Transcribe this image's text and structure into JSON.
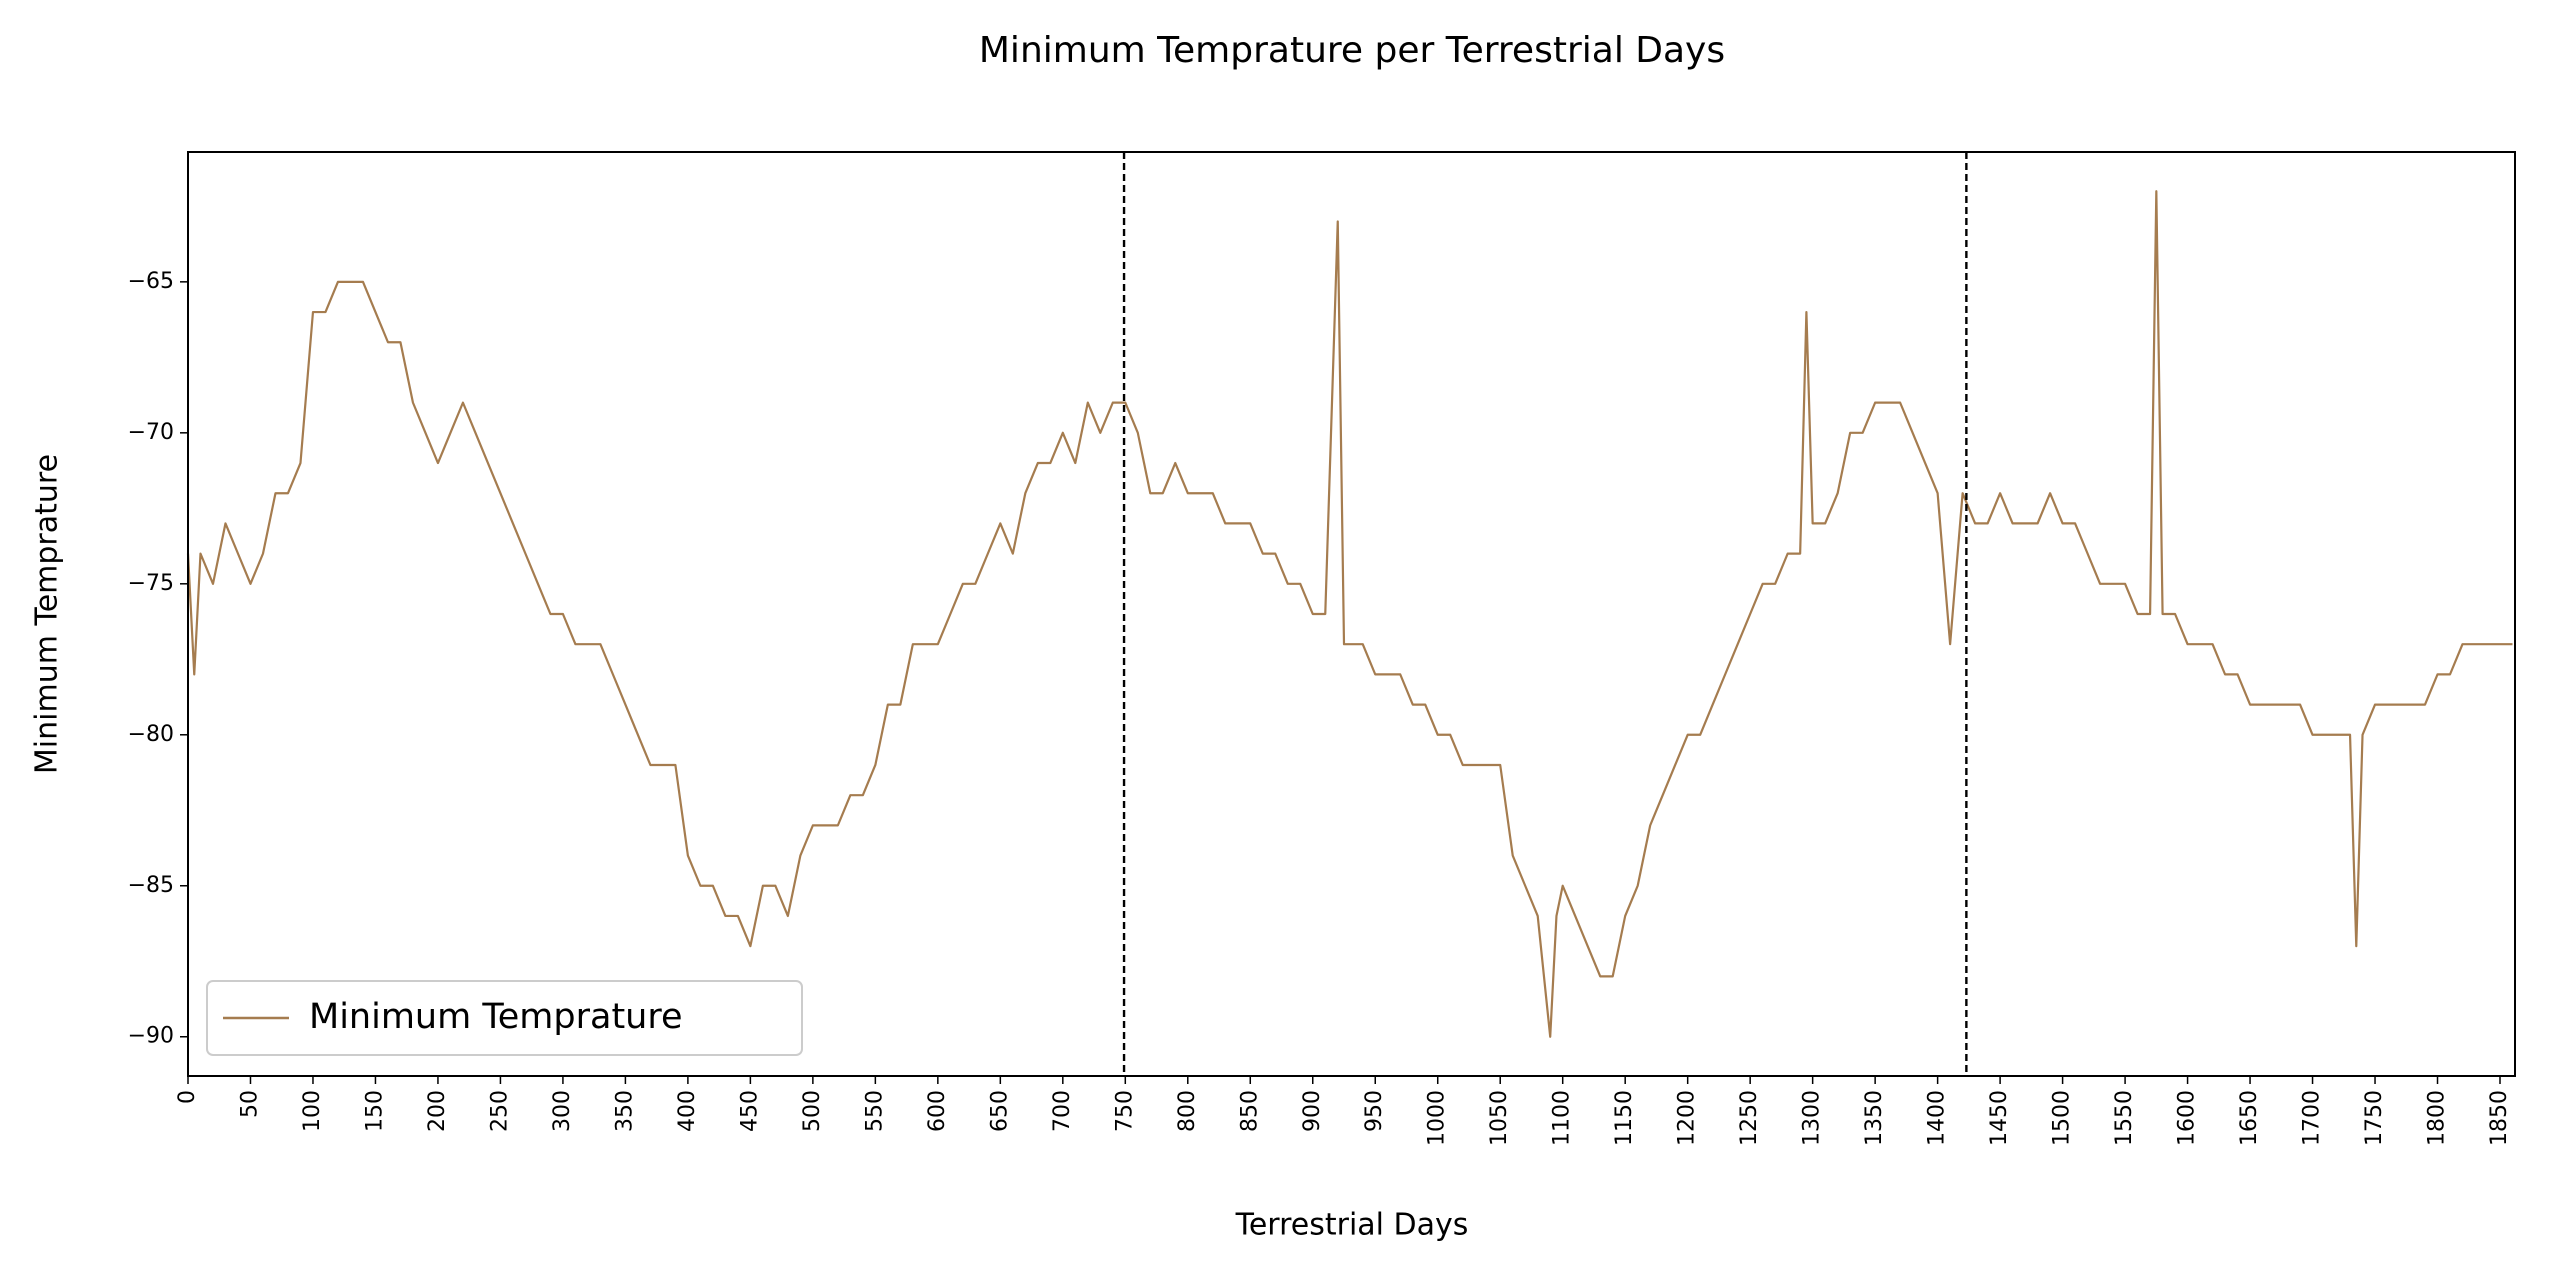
{
  "chart_data": {
    "type": "line",
    "title": "Minimum Temprature per Terrestrial Days",
    "xlabel": "Terrestrial Days",
    "ylabel": "Minimum Temprature",
    "x": [
      0,
      5,
      10,
      20,
      30,
      40,
      50,
      60,
      70,
      80,
      90,
      100,
      110,
      120,
      130,
      140,
      150,
      160,
      170,
      180,
      190,
      200,
      210,
      220,
      230,
      240,
      250,
      260,
      270,
      280,
      290,
      300,
      310,
      320,
      330,
      340,
      350,
      360,
      370,
      380,
      390,
      400,
      410,
      420,
      430,
      440,
      450,
      460,
      470,
      480,
      490,
      500,
      510,
      520,
      530,
      540,
      550,
      560,
      570,
      580,
      590,
      600,
      610,
      620,
      630,
      640,
      650,
      660,
      670,
      680,
      690,
      700,
      710,
      720,
      730,
      740,
      750,
      760,
      770,
      780,
      790,
      800,
      810,
      820,
      830,
      840,
      850,
      860,
      870,
      880,
      890,
      900,
      910,
      920,
      925,
      930,
      940,
      950,
      960,
      970,
      980,
      990,
      1000,
      1010,
      1020,
      1030,
      1040,
      1050,
      1060,
      1070,
      1080,
      1090,
      1095,
      1100,
      1110,
      1120,
      1130,
      1140,
      1150,
      1160,
      1170,
      1180,
      1190,
      1200,
      1210,
      1220,
      1230,
      1240,
      1250,
      1260,
      1270,
      1280,
      1290,
      1295,
      1300,
      1310,
      1320,
      1330,
      1340,
      1350,
      1360,
      1370,
      1380,
      1390,
      1400,
      1410,
      1420,
      1430,
      1440,
      1450,
      1460,
      1470,
      1480,
      1490,
      1500,
      1510,
      1520,
      1530,
      1540,
      1550,
      1560,
      1570,
      1575,
      1580,
      1590,
      1600,
      1610,
      1620,
      1630,
      1640,
      1650,
      1660,
      1670,
      1680,
      1690,
      1700,
      1710,
      1720,
      1730,
      1735,
      1740,
      1750,
      1760,
      1770,
      1780,
      1790,
      1800,
      1810,
      1820,
      1830,
      1840,
      1850,
      1860
    ],
    "series": [
      {
        "name": "Minimum Temprature",
        "color": "#a57c4f",
        "values": [
          -74,
          -78,
          -74,
          -75,
          -73,
          -74,
          -75,
          -74,
          -72,
          -72,
          -71,
          -66,
          -66,
          -65,
          -65,
          -65,
          -66,
          -67,
          -67,
          -69,
          -70,
          -71,
          -70,
          -69,
          -70,
          -71,
          -72,
          -73,
          -74,
          -75,
          -76,
          -76,
          -77,
          -77,
          -77,
          -78,
          -79,
          -80,
          -81,
          -81,
          -81,
          -84,
          -85,
          -85,
          -86,
          -86,
          -87,
          -85,
          -85,
          -86,
          -84,
          -83,
          -83,
          -83,
          -82,
          -82,
          -81,
          -79,
          -79,
          -77,
          -77,
          -77,
          -76,
          -75,
          -75,
          -74,
          -73,
          -74,
          -72,
          -71,
          -71,
          -70,
          -71,
          -69,
          -70,
          -69,
          -69,
          -70,
          -72,
          -72,
          -71,
          -72,
          -72,
          -72,
          -73,
          -73,
          -73,
          -74,
          -74,
          -75,
          -75,
          -76,
          -76,
          -63,
          -77,
          -77,
          -77,
          -78,
          -78,
          -78,
          -79,
          -79,
          -80,
          -80,
          -81,
          -81,
          -81,
          -81,
          -84,
          -85,
          -86,
          -90,
          -86,
          -85,
          -86,
          -87,
          -88,
          -88,
          -86,
          -85,
          -83,
          -82,
          -81,
          -80,
          -80,
          -79,
          -78,
          -77,
          -76,
          -75,
          -75,
          -74,
          -74,
          -66,
          -73,
          -73,
          -72,
          -70,
          -70,
          -69,
          -69,
          -69,
          -70,
          -71,
          -72,
          -77,
          -72,
          -73,
          -73,
          -72,
          -73,
          -73,
          -73,
          -72,
          -73,
          -73,
          -74,
          -75,
          -75,
          -75,
          -76,
          -76,
          -62,
          -76,
          -76,
          -77,
          -77,
          -77,
          -78,
          -78,
          -79,
          -79,
          -79,
          -79,
          -79,
          -80,
          -80,
          -80,
          -80,
          -87,
          -80,
          -79,
          -79,
          -79,
          -79,
          -79,
          -78,
          -78,
          -77,
          -77,
          -77,
          -77,
          -77
        ]
      }
    ],
    "vlines": [
      749,
      1423
    ],
    "xlim": [
      0,
      1862
    ],
    "ylim": [
      -91.3,
      -60.7
    ],
    "xticks": [
      0,
      50,
      100,
      150,
      200,
      250,
      300,
      350,
      400,
      450,
      500,
      550,
      600,
      650,
      700,
      750,
      800,
      850,
      900,
      950,
      1000,
      1050,
      1100,
      1150,
      1200,
      1250,
      1300,
      1350,
      1400,
      1450,
      1500,
      1550,
      1600,
      1650,
      1700,
      1750,
      1800,
      1850
    ],
    "yticks": [
      {
        "value": -90,
        "label": "−90"
      },
      {
        "value": -85,
        "label": "−85"
      },
      {
        "value": -80,
        "label": "−80"
      },
      {
        "value": -75,
        "label": "−75"
      },
      {
        "value": -70,
        "label": "−70"
      },
      {
        "value": -65,
        "label": "−65"
      }
    ],
    "legend": "lower left"
  }
}
